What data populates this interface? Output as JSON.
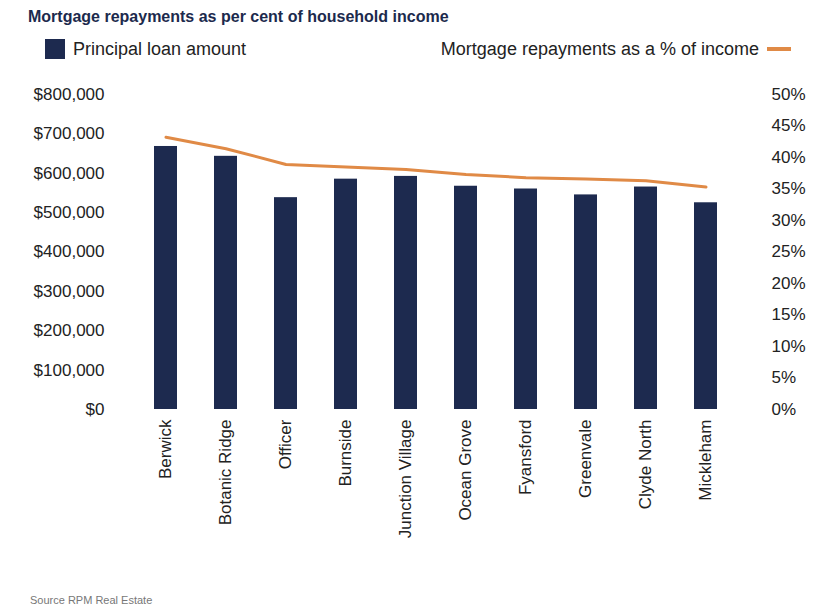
{
  "chart_data": {
    "type": "bar",
    "title": "Mortgage repayments as per cent of household income",
    "source": "Source RPM Real Estate",
    "categories": [
      "Berwick",
      "Botanic Ridge",
      "Officer",
      "Burnside",
      "Junction Village",
      "Ocean Grove",
      "Fyansford",
      "Greenvale",
      "Clyde North",
      "Mickleham"
    ],
    "series": [
      {
        "name": "Principal loan amount",
        "type": "bar",
        "color": "#1d2a4f",
        "values": [
          668000,
          643000,
          538000,
          585000,
          592000,
          567000,
          560000,
          545000,
          565000,
          525000
        ]
      },
      {
        "name": "Mortgage repayments as a % of income",
        "type": "line",
        "axis": "y2",
        "color": "#e08a46",
        "values": [
          43.2,
          41.4,
          38.9,
          38.5,
          38.1,
          37.3,
          36.8,
          36.6,
          36.3,
          35.3
        ]
      }
    ],
    "ylim": [
      0,
      800000
    ],
    "yticks": [
      {
        "value": 0,
        "label": "$0"
      },
      {
        "value": 100000,
        "label": "$100,000"
      },
      {
        "value": 200000,
        "label": "$200,000"
      },
      {
        "value": 300000,
        "label": "$300,000"
      },
      {
        "value": 400000,
        "label": "$400,000"
      },
      {
        "value": 500000,
        "label": "$500,000"
      },
      {
        "value": 600000,
        "label": "$600,000"
      },
      {
        "value": 700000,
        "label": "$700,000"
      },
      {
        "value": 800000,
        "label": "$800,000"
      }
    ],
    "y2lim": [
      0,
      50
    ],
    "y2ticks": [
      {
        "value": 0,
        "label": "0%"
      },
      {
        "value": 5,
        "label": "5%"
      },
      {
        "value": 10,
        "label": "10%"
      },
      {
        "value": 15,
        "label": "15%"
      },
      {
        "value": 20,
        "label": "20%"
      },
      {
        "value": 25,
        "label": "25%"
      },
      {
        "value": 30,
        "label": "30%"
      },
      {
        "value": 35,
        "label": "35%"
      },
      {
        "value": 40,
        "label": "40%"
      },
      {
        "value": 45,
        "label": "45%"
      },
      {
        "value": 50,
        "label": "50%"
      }
    ],
    "grid": false,
    "legend": "top"
  }
}
